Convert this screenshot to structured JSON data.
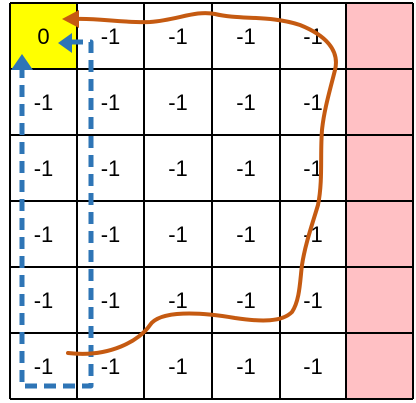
{
  "grid": {
    "rows": [
      [
        "0",
        "-1",
        "-1",
        "-1",
        "-1",
        ""
      ],
      [
        "-1",
        "-1",
        "-1",
        "-1",
        "-1",
        ""
      ],
      [
        "-1",
        "-1",
        "-1",
        "-1",
        "-1",
        ""
      ],
      [
        "-1",
        "-1",
        "-1",
        "-1",
        "-1",
        ""
      ],
      [
        "-1",
        "-1",
        "-1",
        "-1",
        "-1",
        ""
      ],
      [
        "-1",
        "-1",
        "-1",
        "-1",
        "-1",
        ""
      ]
    ],
    "start_cell_color": "#ffff00",
    "blocked_column_color": "#ffc0c4",
    "line_color": "#000000"
  },
  "paths": {
    "dashed_path_color": "#2e75b6",
    "solid_path_color": "#c55a11"
  }
}
